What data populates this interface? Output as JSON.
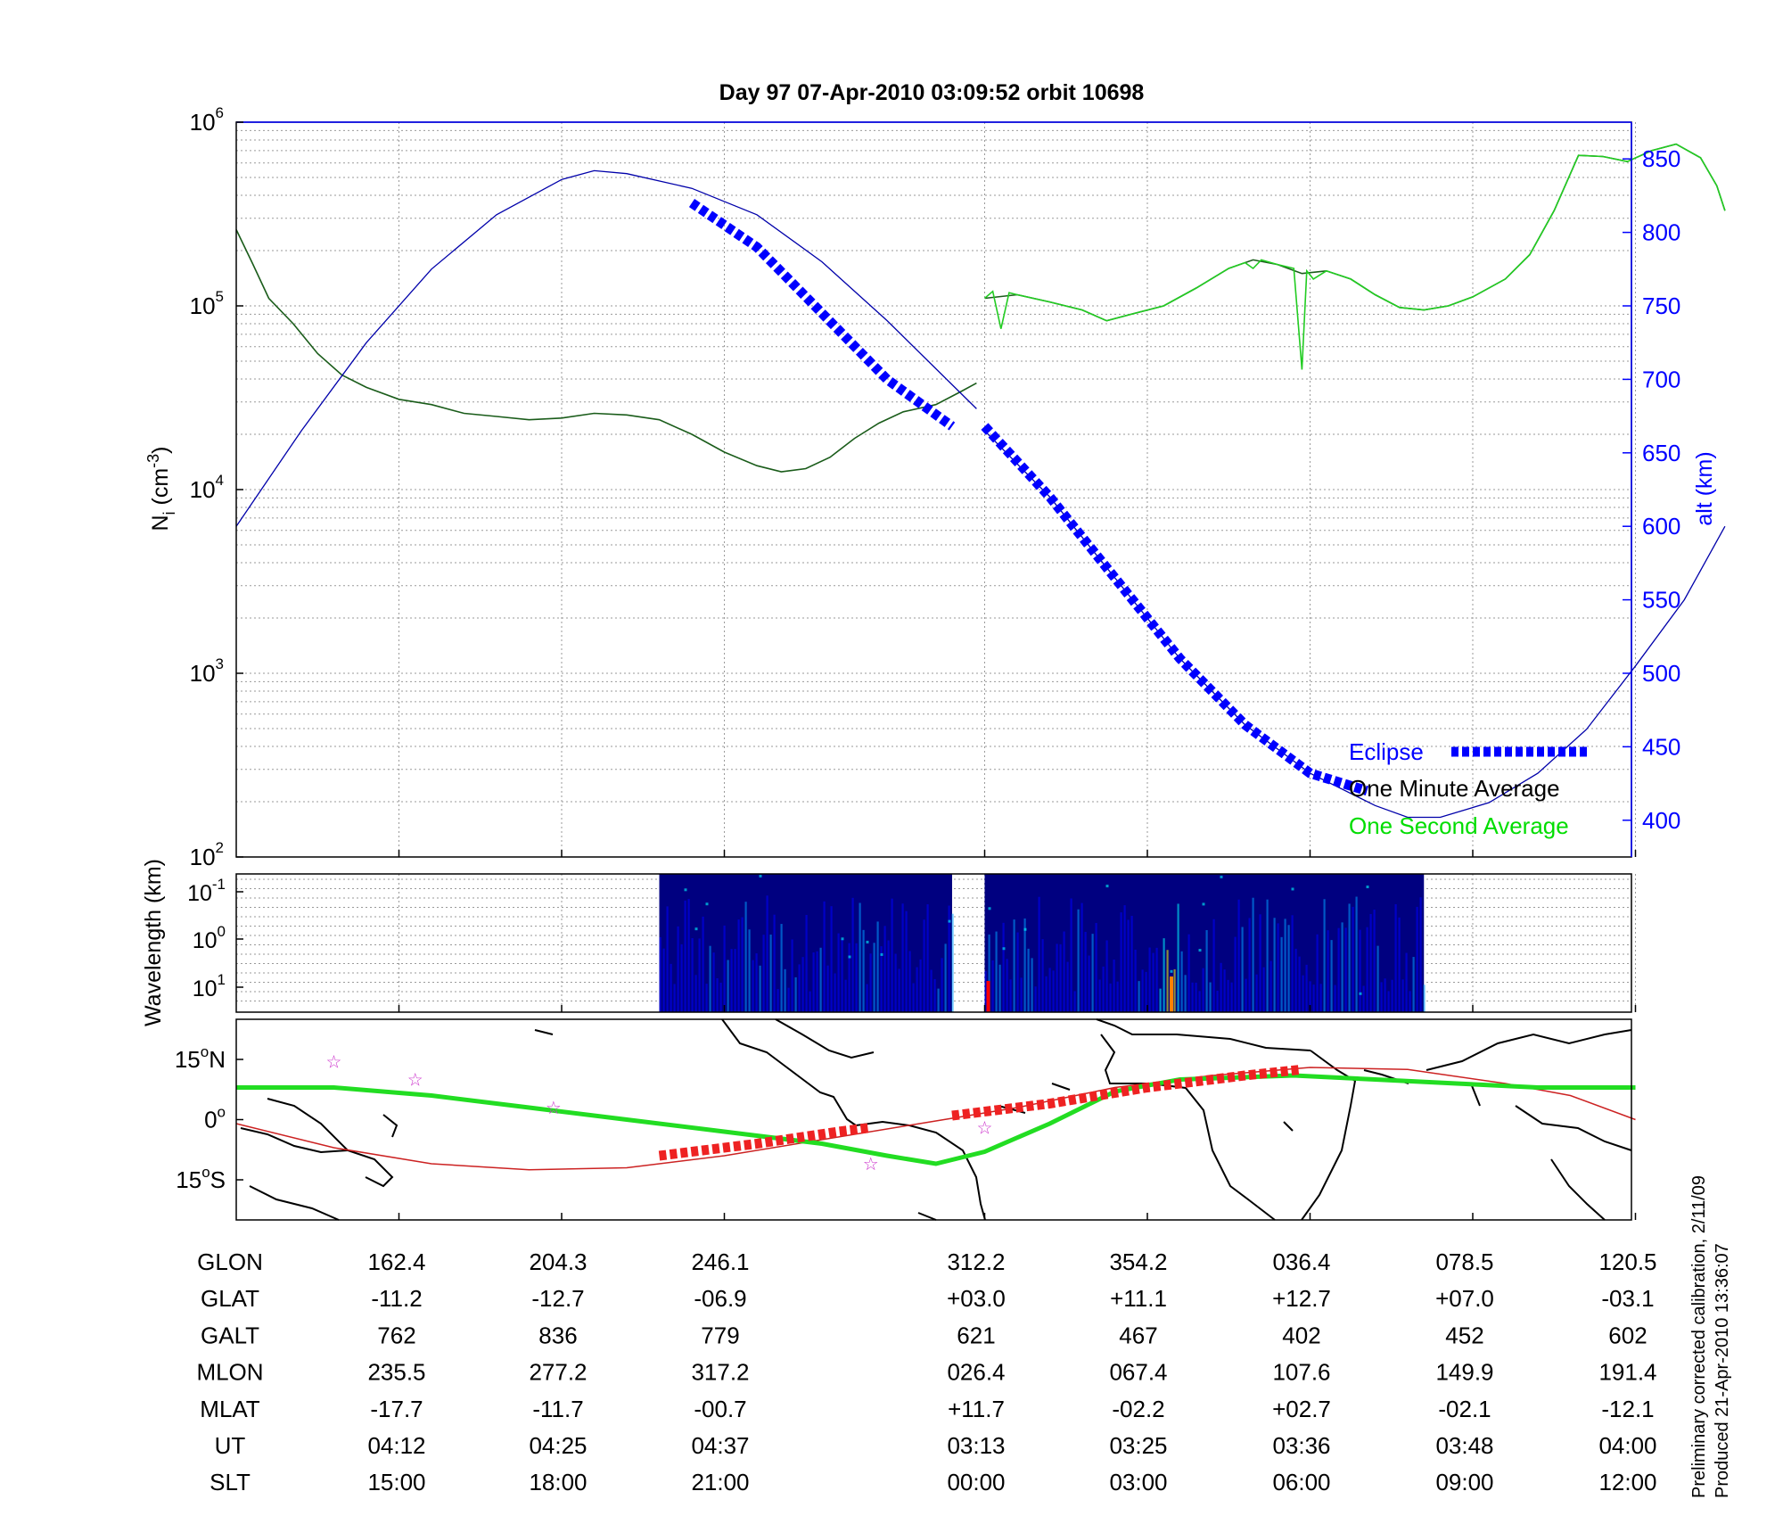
{
  "chart_data": [
    {
      "type": "line",
      "title": "Day 97  07-Apr-2010 03:09:52   orbit 10698",
      "ylabel_left": "N",
      "ylabel_left_sub": "i",
      "ylabel_left_units": " (cm",
      "ylabel_left_exp": "-3",
      "ylabel_left_close": ")",
      "ylabel_right": "alt (km)",
      "yscale_left": "log",
      "ylim_left": [
        100,
        1000000
      ],
      "yticks_left": [
        {
          "base": "10",
          "exp": "2",
          "value": 100
        },
        {
          "base": "10",
          "exp": "3",
          "value": 1000
        },
        {
          "base": "10",
          "exp": "4",
          "value": 10000
        },
        {
          "base": "10",
          "exp": "5",
          "value": 100000
        },
        {
          "base": "10",
          "exp": "6",
          "value": 1000000
        }
      ],
      "ylim_right": [
        375,
        875
      ],
      "yticks_right": [
        "400",
        "450",
        "500",
        "550",
        "600",
        "650",
        "700",
        "750",
        "800",
        "850"
      ],
      "grid": true,
      "legend": {
        "placement": "bottom-right",
        "entries": [
          {
            "label": "Eclipse",
            "color": "#0000ff",
            "style": "dashed-thick"
          },
          {
            "label": "One Minute Average",
            "color": "#000000",
            "style": "line"
          },
          {
            "label": "One Second Average",
            "color": "#00dd00",
            "style": "line"
          }
        ]
      },
      "x_index_range": [
        0,
        8.6
      ],
      "series": [
        {
          "name": "One Minute Average",
          "axis": "left",
          "color": "#1a5c1a",
          "segments": [
            [
              [
                0,
                260000
              ],
              [
                0.1,
                170000
              ],
              [
                0.2,
                110000
              ],
              [
                0.35,
                80000
              ],
              [
                0.5,
                55000
              ],
              [
                0.65,
                42000
              ],
              [
                0.8,
                36000
              ],
              [
                1.0,
                31000
              ],
              [
                1.2,
                29000
              ],
              [
                1.4,
                26000
              ],
              [
                1.6,
                25000
              ],
              [
                1.8,
                24000
              ],
              [
                2.0,
                24500
              ],
              [
                2.2,
                26000
              ],
              [
                2.4,
                25500
              ],
              [
                2.6,
                24000
              ],
              [
                2.8,
                20000
              ],
              [
                3.0,
                16000
              ],
              [
                3.2,
                13500
              ],
              [
                3.35,
                12500
              ],
              [
                3.5,
                13000
              ],
              [
                3.65,
                15000
              ],
              [
                3.8,
                19000
              ],
              [
                3.95,
                23000
              ],
              [
                4.1,
                26500
              ],
              [
                4.3,
                29000
              ],
              [
                4.45,
                34000
              ],
              [
                4.55,
                38000
              ]
            ],
            [
              [
                4.6,
                110000
              ],
              [
                4.8,
                115000
              ],
              [
                5.0,
                105000
              ],
              [
                5.2,
                95000
              ],
              [
                5.35,
                83000
              ],
              [
                5.5,
                90000
              ],
              [
                5.7,
                100000
              ],
              [
                5.9,
                125000
              ],
              [
                6.1,
                160000
              ],
              [
                6.25,
                178000
              ],
              [
                6.4,
                168000
              ],
              [
                6.55,
                150000
              ],
              [
                6.7,
                155000
              ],
              [
                6.85,
                140000
              ],
              [
                7.0,
                115000
              ],
              [
                7.15,
                98000
              ],
              [
                7.3,
                95000
              ],
              [
                7.45,
                100000
              ],
              [
                7.6,
                112000
              ],
              [
                7.8,
                140000
              ],
              [
                7.95,
                190000
              ],
              [
                8.1,
                330000
              ],
              [
                8.25,
                660000
              ],
              [
                8.4,
                650000
              ],
              [
                8.55,
                610000
              ],
              [
                8.7,
                700000
              ],
              [
                8.85,
                760000
              ],
              [
                9.0,
                640000
              ],
              [
                9.1,
                450000
              ],
              [
                9.15,
                330000
              ]
            ]
          ]
        },
        {
          "name": "One Second Average",
          "axis": "left",
          "color": "#22cc22",
          "segments": [
            [
              [
                4.6,
                110000
              ],
              [
                4.65,
                120000
              ],
              [
                4.7,
                75000
              ],
              [
                4.75,
                118000
              ],
              [
                4.8,
                115000
              ],
              [
                5.0,
                105000
              ],
              [
                5.2,
                95000
              ],
              [
                5.35,
                83000
              ],
              [
                5.5,
                90000
              ],
              [
                5.7,
                100000
              ],
              [
                5.9,
                125000
              ],
              [
                6.1,
                160000
              ],
              [
                6.2,
                172000
              ],
              [
                6.25,
                160000
              ],
              [
                6.3,
                178000
              ],
              [
                6.4,
                168000
              ],
              [
                6.5,
                160000
              ],
              [
                6.55,
                45000
              ],
              [
                6.58,
                155000
              ],
              [
                6.62,
                140000
              ],
              [
                6.7,
                155000
              ],
              [
                6.85,
                140000
              ],
              [
                7.0,
                115000
              ],
              [
                7.15,
                98000
              ],
              [
                7.3,
                95000
              ],
              [
                7.45,
                100000
              ],
              [
                7.6,
                112000
              ],
              [
                7.8,
                140000
              ],
              [
                7.95,
                190000
              ],
              [
                8.1,
                330000
              ],
              [
                8.25,
                660000
              ],
              [
                8.4,
                650000
              ],
              [
                8.55,
                610000
              ],
              [
                8.7,
                700000
              ],
              [
                8.85,
                760000
              ],
              [
                9.0,
                640000
              ],
              [
                9.1,
                450000
              ],
              [
                9.15,
                330000
              ]
            ]
          ]
        },
        {
          "name": "alt",
          "axis": "right",
          "color": "#0000aa",
          "segments": [
            [
              [
                0,
                600
              ],
              [
                0.4,
                665
              ],
              [
                0.8,
                725
              ],
              [
                1.2,
                775
              ],
              [
                1.6,
                812
              ],
              [
                2.0,
                836
              ],
              [
                2.2,
                842
              ],
              [
                2.4,
                840
              ],
              [
                2.8,
                830
              ],
              [
                3.2,
                812
              ],
              [
                3.6,
                780
              ],
              [
                4.0,
                740
              ],
              [
                4.55,
                680
              ]
            ],
            [
              [
                4.6,
                665
              ],
              [
                5.0,
                620
              ],
              [
                5.4,
                565
              ],
              [
                5.8,
                510
              ],
              [
                6.2,
                465
              ],
              [
                6.6,
                432
              ],
              [
                7.0,
                410
              ],
              [
                7.2,
                402
              ],
              [
                7.4,
                402
              ],
              [
                7.7,
                412
              ],
              [
                8.0,
                432
              ],
              [
                8.3,
                462
              ],
              [
                8.6,
                505
              ],
              [
                8.9,
                550
              ],
              [
                9.15,
                600
              ]
            ]
          ]
        }
      ],
      "eclipse_segments": [
        [
          [
            2.8,
            820
          ],
          [
            3.2,
            790
          ],
          [
            3.6,
            745
          ],
          [
            4.0,
            700
          ],
          [
            4.4,
            668
          ]
        ],
        [
          [
            4.6,
            668
          ],
          [
            5.0,
            620
          ],
          [
            5.4,
            565
          ],
          [
            5.8,
            510
          ],
          [
            6.2,
            465
          ],
          [
            6.6,
            432
          ],
          [
            6.95,
            420
          ]
        ]
      ]
    },
    {
      "type": "heatmap",
      "ylabel": "Wavelength (km)",
      "yticks": [
        {
          "base": "10",
          "exp": "-1"
        },
        {
          "base": "10",
          "exp": "0"
        },
        {
          "base": "10",
          "exp": "1"
        }
      ],
      "data_blocks": [
        [
          2.6,
          4.4
        ],
        [
          4.6,
          7.3
        ]
      ],
      "colormap": [
        "#000080",
        "#0000ff",
        "#00a0ff",
        "#00ffff",
        "#ffff00",
        "#ff8000",
        "#ff0000"
      ]
    },
    {
      "type": "scatter",
      "subtype": "orbit track map",
      "yticks": [
        {
          "label": "15",
          "suffix": "N"
        },
        {
          "label": "0",
          "suffix": ""
        },
        {
          "label": "15",
          "suffix": "S"
        }
      ],
      "ylim": [
        -25,
        25
      ],
      "magnetic_equator": [
        [
          0,
          8
        ],
        [
          0.6,
          8
        ],
        [
          1.2,
          6
        ],
        [
          1.8,
          3
        ],
        [
          2.4,
          0
        ],
        [
          3.0,
          -3
        ],
        [
          3.6,
          -6
        ],
        [
          4.0,
          -9
        ],
        [
          4.3,
          -11
        ],
        [
          4.6,
          -8
        ],
        [
          5.0,
          -1
        ],
        [
          5.4,
          7
        ],
        [
          5.8,
          10
        ],
        [
          6.5,
          11
        ],
        [
          7.0,
          10
        ],
        [
          7.5,
          9
        ],
        [
          8.0,
          8
        ],
        [
          8.6,
          8
        ]
      ],
      "orbit_track": [
        [
          0,
          -1
        ],
        [
          0.6,
          -7
        ],
        [
          1.2,
          -11
        ],
        [
          1.8,
          -12.5
        ],
        [
          2.4,
          -12
        ],
        [
          3.0,
          -9
        ],
        [
          3.6,
          -5
        ],
        [
          4.2,
          -1
        ],
        [
          4.8,
          3
        ],
        [
          5.4,
          8
        ],
        [
          6.0,
          11
        ],
        [
          6.6,
          13
        ],
        [
          7.2,
          12.5
        ],
        [
          7.8,
          9
        ],
        [
          8.2,
          6
        ],
        [
          8.6,
          0
        ]
      ],
      "eclipse_track": [
        [
          [
            2.6,
            -9
          ],
          [
            3.2,
            -6
          ],
          [
            3.7,
            -3
          ],
          [
            3.9,
            -2
          ]
        ],
        [
          [
            4.4,
            1
          ],
          [
            5.0,
            4
          ],
          [
            5.6,
            8
          ],
          [
            6.2,
            11
          ],
          [
            6.55,
            12.5
          ]
        ]
      ],
      "markers": [
        [
          0.6,
          14.5
        ],
        [
          1.1,
          10
        ],
        [
          1.95,
          3
        ],
        [
          3.9,
          -11
        ],
        [
          4.6,
          -2
        ]
      ]
    }
  ],
  "table": {
    "rows": [
      {
        "label": "GLON",
        "values": [
          "162.4",
          "204.3",
          "246.1",
          "312.2",
          "354.2",
          "036.4",
          "078.5",
          "120.5"
        ]
      },
      {
        "label": "GLAT",
        "values": [
          "-11.2",
          "-12.7",
          "-06.9",
          "+03.0",
          "+11.1",
          "+12.7",
          "+07.0",
          "-03.1"
        ]
      },
      {
        "label": "GALT",
        "values": [
          "762",
          "836",
          "779",
          "621",
          "467",
          "402",
          "452",
          "602"
        ]
      },
      {
        "label": "MLON",
        "values": [
          "235.5",
          "277.2",
          "317.2",
          "026.4",
          "067.4",
          "107.6",
          "149.9",
          "191.4"
        ]
      },
      {
        "label": "MLAT",
        "values": [
          "-17.7",
          "-11.7",
          "-00.7",
          "+11.7",
          "-02.2",
          "+02.7",
          "-02.1",
          "-12.1"
        ]
      },
      {
        "label": "UT",
        "values": [
          "04:12",
          "04:25",
          "04:37",
          "03:13",
          "03:25",
          "03:36",
          "03:48",
          "04:00"
        ]
      },
      {
        "label": "SLT",
        "values": [
          "15:00",
          "18:00",
          "21:00",
          "00:00",
          "03:00",
          "06:00",
          "09:00",
          "12:00"
        ]
      }
    ]
  },
  "footnote": {
    "line1": "Preliminary corrected calibration, 2/11/09",
    "line2": "Produced 21-Apr-2010 13:36:07"
  }
}
